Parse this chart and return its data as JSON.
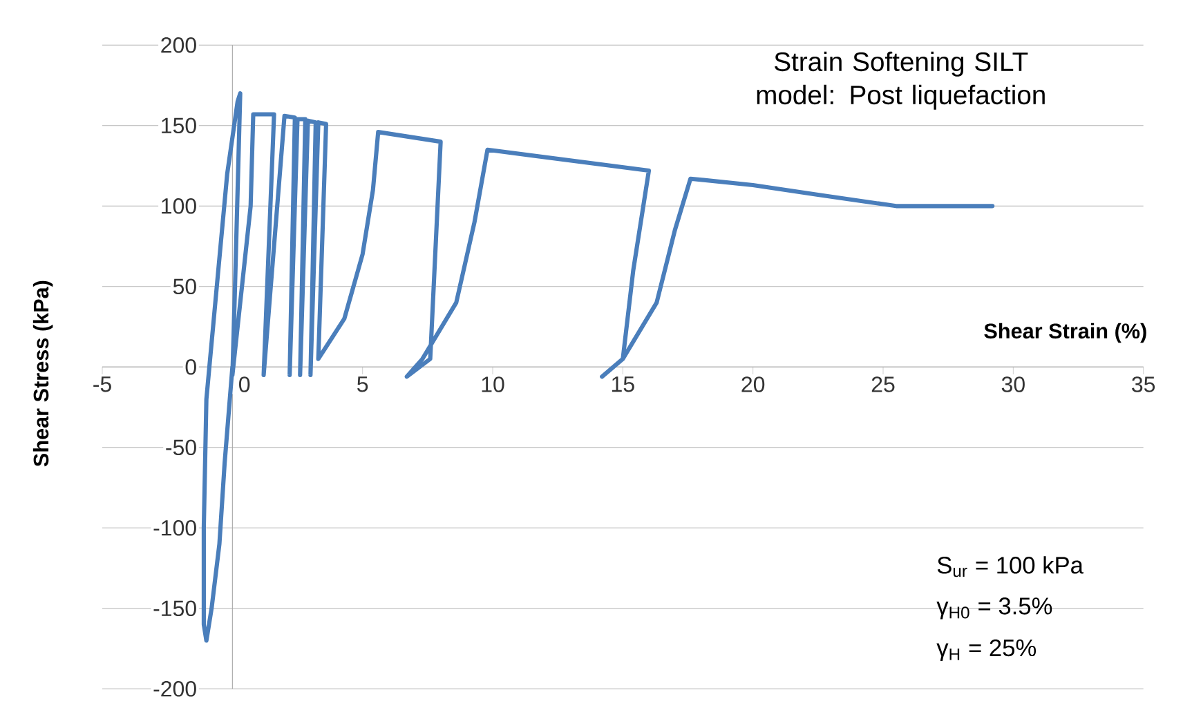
{
  "chart_data": {
    "type": "line",
    "title": "Strain Softening SILT model: Post liquefaction",
    "xlabel": "Shear Strain (%)",
    "ylabel": "Shear Stress (kPa)",
    "annotations": [
      "S$_{ur}$ = 100 kPa",
      "γ$_{H0}$ = 3.5%",
      "γ$_{H}$ = 25%"
    ],
    "x": [
      0,
      -0.3,
      -0.5,
      -0.8,
      -1.0,
      -1.1,
      -1.1,
      -1.0,
      -0.6,
      -0.2,
      0.2,
      0.3,
      0.1,
      0.0,
      0.7,
      0.8,
      1.6,
      1.2,
      2.0,
      2.4,
      2.2,
      2.5,
      2.8,
      2.6,
      2.9,
      3.2,
      3.0,
      3.3,
      3.6,
      3.3,
      4.3,
      5.0,
      5.4,
      5.6,
      8.0,
      7.6,
      6.7,
      7.3,
      8.6,
      9.3,
      9.8,
      16.0,
      15.4,
      15.0,
      14.2,
      15.0,
      16.3,
      17.0,
      17.6,
      20.0,
      22.5,
      25.5,
      29.2
    ],
    "values": [
      0,
      -60,
      -110,
      -150,
      -170,
      -160,
      -100,
      -20,
      50,
      120,
      165,
      170,
      50,
      -5,
      100,
      157,
      157,
      -5,
      156,
      155,
      -5,
      154,
      154,
      -5,
      153,
      152,
      -5,
      152,
      151,
      5,
      30,
      70,
      110,
      146,
      140,
      5,
      -6,
      5,
      40,
      90,
      135,
      122,
      60,
      5,
      -6,
      5,
      40,
      85,
      117,
      113,
      107,
      100,
      100
    ],
    "color": "#4a7ebb",
    "xlim": [
      -5,
      35
    ],
    "ylim": [
      -200,
      200
    ],
    "xticks": [
      -5,
      0,
      5,
      10,
      15,
      20,
      25,
      30,
      35
    ],
    "yticks": [
      -200,
      -150,
      -100,
      -50,
      0,
      50,
      100,
      150,
      200
    ],
    "grid": "y"
  }
}
